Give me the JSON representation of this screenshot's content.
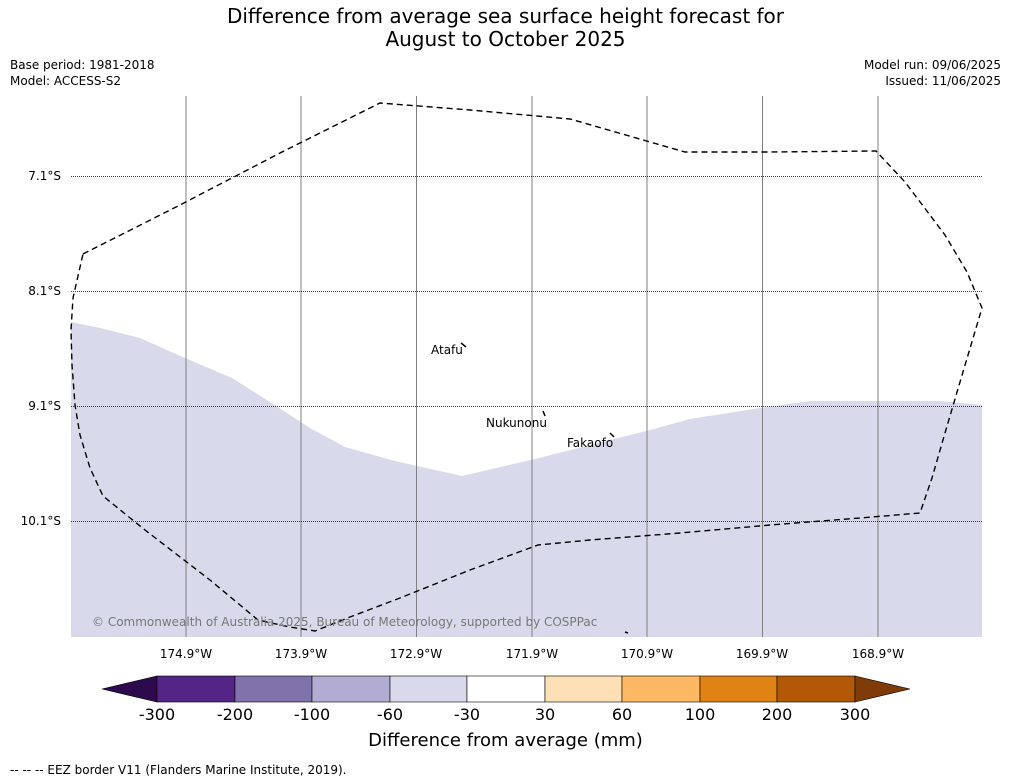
{
  "title": {
    "line1": "Difference from average sea surface height forecast for",
    "line2": "August to October 2025"
  },
  "meta": {
    "base_period": "Base period: 1981-2018",
    "model": "Model: ACCESS-S2",
    "model_run": "Model run: 09/06/2025",
    "issued": "Issued: 11/06/2025"
  },
  "latitude_labels": [
    "7.1°S",
    "8.1°S",
    "9.1°S",
    "10.1°S"
  ],
  "longitude_labels": [
    "174.9°W",
    "173.9°W",
    "172.9°W",
    "171.9°W",
    "170.9°W",
    "169.9°W",
    "168.9°W"
  ],
  "islands": {
    "atafu": "Atafu",
    "nukunonu": "Nukunonu",
    "fakaofo": "Fakaofo"
  },
  "copyright": "© Commonwealth of Australia 2025, Bureau of Meteorology, supported by COSPPac",
  "colorbar": {
    "title": "Difference from average (mm)",
    "ticks": [
      "-300",
      "-200",
      "-100",
      "-60",
      "-30",
      "30",
      "60",
      "100",
      "200",
      "300"
    ],
    "colors": [
      "#2d0a4e",
      "#542487",
      "#8073ac",
      "#b2abd2",
      "#d8daeb",
      "#ffffff",
      "#fee0b6",
      "#fdb863",
      "#e08214",
      "#b35806",
      "#7f3b08"
    ]
  },
  "map_colors": {
    "shaded_region": "#d8daeb",
    "eez_border": "#000000"
  },
  "footer": "--  --  -- EEZ border V11 (Flanders Marine Institute, 2019)."
}
